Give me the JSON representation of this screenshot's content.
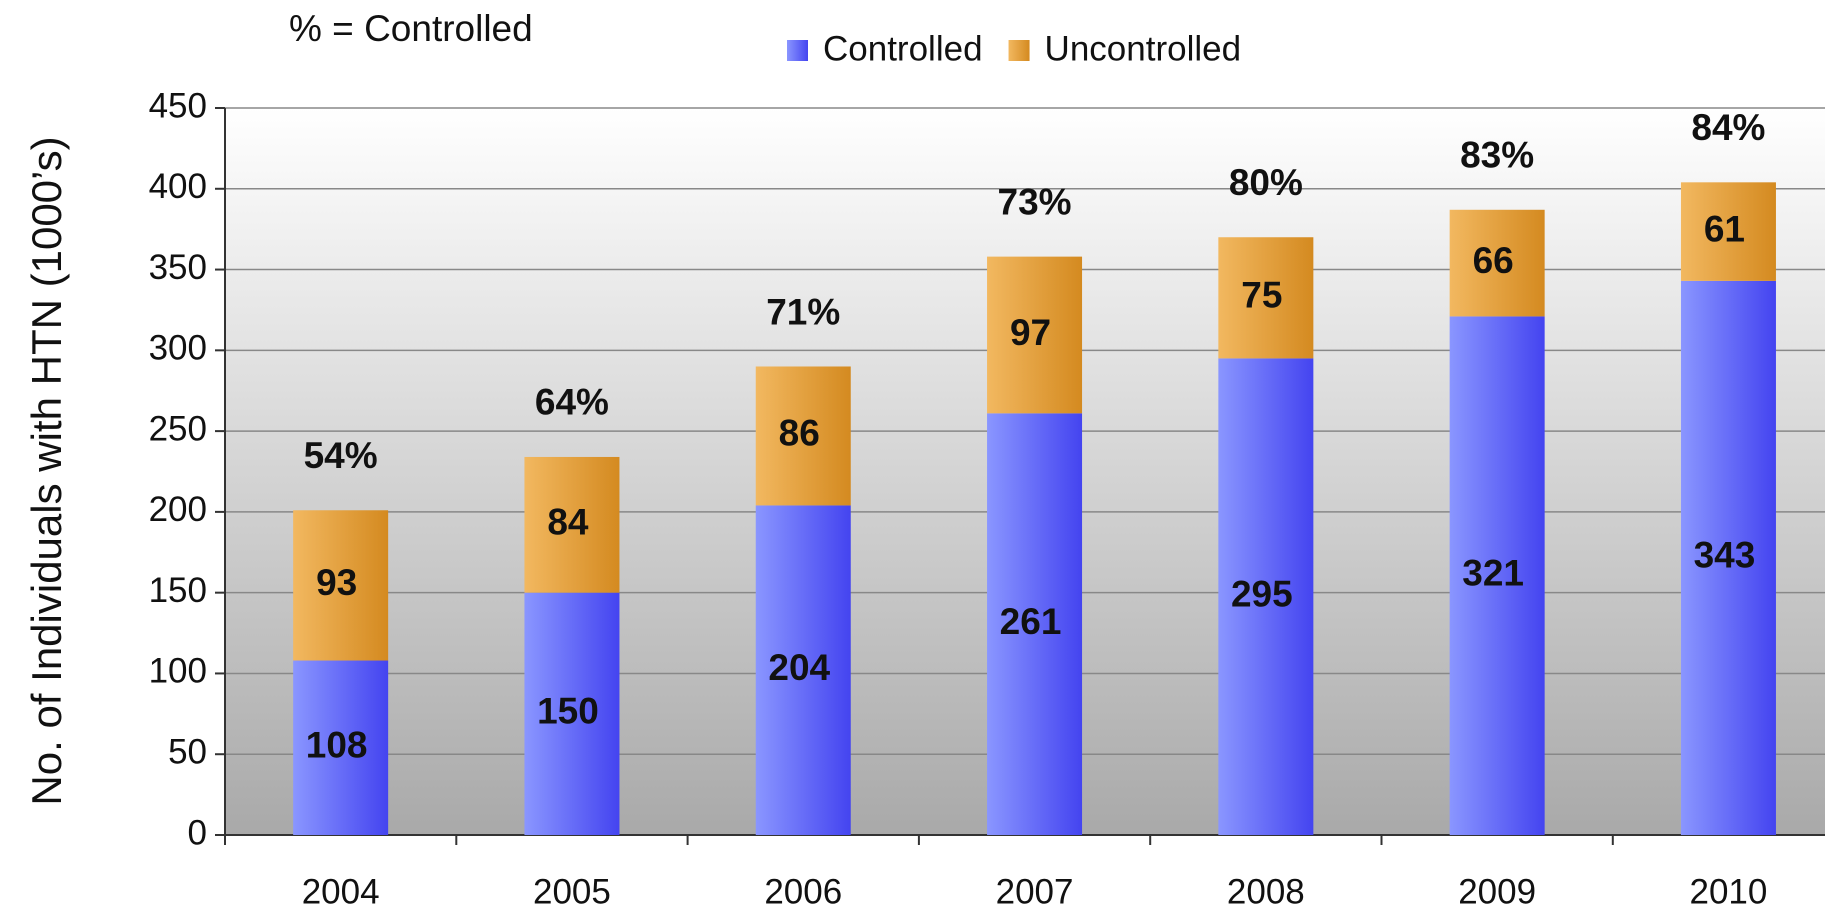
{
  "chart_data": {
    "type": "stacked_bar",
    "note": "% = Controlled",
    "y_label": "No. of Individuals with HTN (1000’s)",
    "categories": [
      "2004",
      "2005",
      "2006",
      "2007",
      "2008",
      "2009",
      "2010"
    ],
    "series": [
      {
        "name": "Controlled",
        "color": "#5a62f8",
        "values": [
          108,
          150,
          204,
          261,
          295,
          321,
          343
        ]
      },
      {
        "name": "Uncontrolled",
        "color": "#e09a35",
        "values": [
          93,
          84,
          86,
          97,
          75,
          66,
          61
        ]
      }
    ],
    "annotations": [
      "54%",
      "64%",
      "71%",
      "73%",
      "80%",
      "83%",
      "84%"
    ],
    "ylim": [
      0,
      450
    ],
    "yticks": [
      0,
      50,
      100,
      150,
      200,
      250,
      300,
      350,
      400,
      450
    ],
    "grid": true,
    "legend": "top"
  }
}
